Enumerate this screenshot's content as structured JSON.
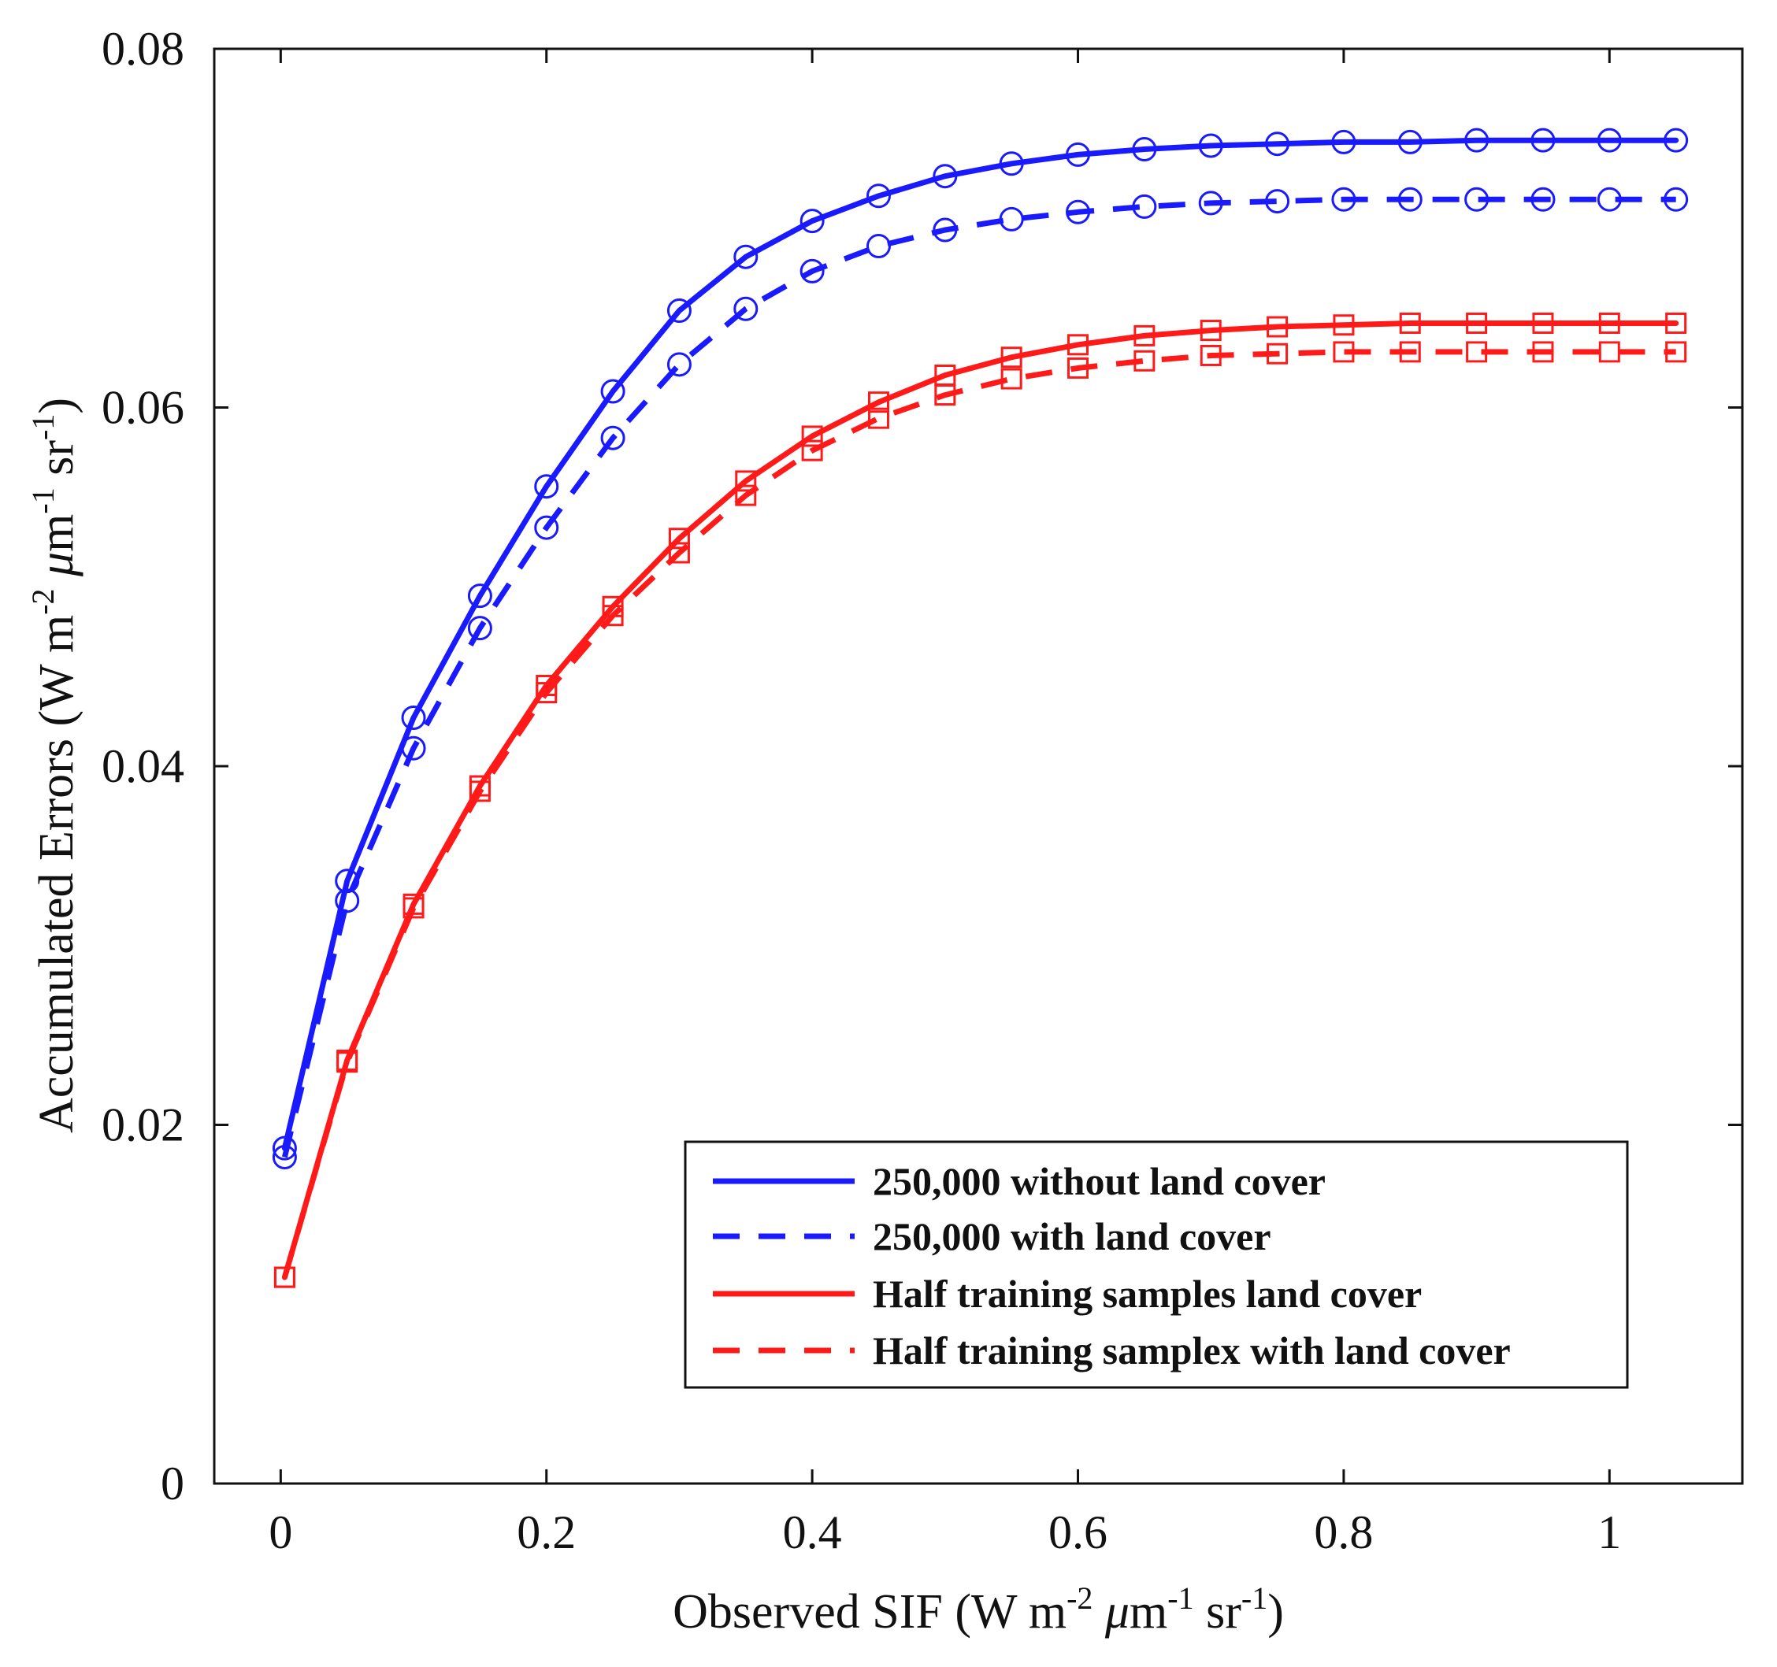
{
  "chart_data": {
    "type": "line",
    "title": "",
    "xlabel": {
      "main": "Observed SIF (W m",
      "sup1": "-2",
      "mid1": " ",
      "mu": "μ",
      "mid2": "m",
      "sup2": "-1",
      "end": " sr",
      "sup3": "-1",
      "close": ")"
    },
    "ylabel": {
      "main": "Accumulated Errors (W m",
      "sup1": "-2",
      "mid1": " ",
      "mu": "μ",
      "mid2": "m",
      "sup2": "-1",
      "end": " sr",
      "sup3": "-1",
      "close": ")"
    },
    "xlim": [
      -0.05,
      1.1
    ],
    "ylim": [
      0,
      0.08
    ],
    "xticks": [
      0,
      0.2,
      0.4,
      0.6,
      0.8,
      1
    ],
    "xtick_labels": [
      "0",
      "0.2",
      "0.4",
      "0.6",
      "0.8",
      "1"
    ],
    "yticks": [
      0,
      0.02,
      0.04,
      0.06,
      0.08
    ],
    "ytick_labels": [
      "0",
      "0.02",
      "0.04",
      "0.06",
      "0.08"
    ],
    "grid": false,
    "legend_position": "bottom-right",
    "x": [
      0.003,
      0.05,
      0.1,
      0.15,
      0.2,
      0.25,
      0.3,
      0.35,
      0.4,
      0.45,
      0.5,
      0.55,
      0.6,
      0.65,
      0.7,
      0.75,
      0.8,
      0.85,
      0.9,
      0.95,
      1.0,
      1.05
    ],
    "series": [
      {
        "name": "250,000 without land cover",
        "color": "#1a1aff",
        "dash": "solid",
        "marker": "circle",
        "values": [
          0.0187,
          0.0336,
          0.0427,
          0.0495,
          0.0556,
          0.0609,
          0.0654,
          0.0684,
          0.0704,
          0.0718,
          0.0729,
          0.0736,
          0.0741,
          0.0744,
          0.0746,
          0.0747,
          0.0748,
          0.0748,
          0.0749,
          0.0749,
          0.0749,
          0.0749
        ]
      },
      {
        "name": "250,000 with land cover",
        "color": "#1a1aff",
        "dash": "dashed",
        "marker": "circle",
        "values": [
          0.0182,
          0.0325,
          0.041,
          0.0477,
          0.0533,
          0.0583,
          0.0624,
          0.0655,
          0.0676,
          0.069,
          0.0699,
          0.0705,
          0.0709,
          0.0712,
          0.0714,
          0.0715,
          0.0716,
          0.0716,
          0.0716,
          0.0716,
          0.0716,
          0.0716
        ]
      },
      {
        "name": "Half training samples land cover",
        "color": "#ff1a1a",
        "dash": "solid",
        "marker": "square",
        "values": [
          0.0115,
          0.0236,
          0.0323,
          0.0389,
          0.0445,
          0.0489,
          0.0527,
          0.0559,
          0.0584,
          0.0603,
          0.0618,
          0.0628,
          0.0635,
          0.064,
          0.0643,
          0.0645,
          0.0646,
          0.0647,
          0.0647,
          0.0647,
          0.0647,
          0.0647
        ]
      },
      {
        "name": "Half training samplex with land cover",
        "color": "#ff1a1a",
        "dash": "dashed",
        "marker": "square",
        "values": [
          0.0115,
          0.0235,
          0.0321,
          0.0386,
          0.0441,
          0.0484,
          0.0519,
          0.0551,
          0.0576,
          0.0594,
          0.0607,
          0.0616,
          0.0622,
          0.0626,
          0.0629,
          0.063,
          0.0631,
          0.0631,
          0.0631,
          0.0631,
          0.0631,
          0.0631
        ]
      }
    ]
  }
}
